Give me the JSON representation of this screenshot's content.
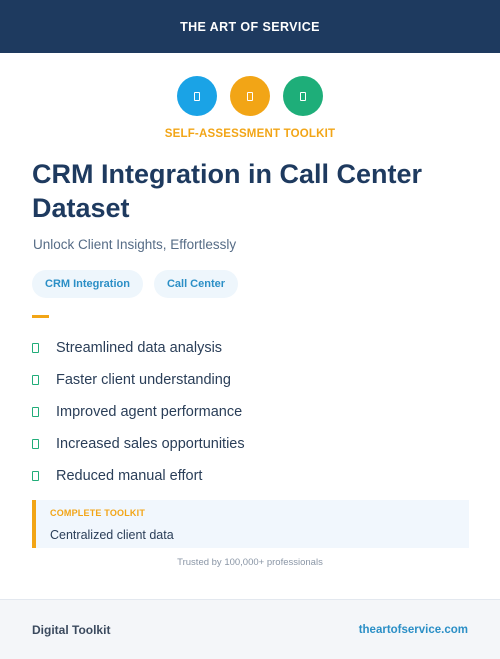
{
  "header": {
    "brand": "THE ART OF SERVICE"
  },
  "icons": [
    {
      "name": "doc-icon",
      "color": "#1aa3e6"
    },
    {
      "name": "doc-icon",
      "color": "#f2a516"
    },
    {
      "name": "doc-icon",
      "color": "#1eae79"
    }
  ],
  "kicker": "SELF-ASSESSMENT TOOLKIT",
  "title": "CRM Integration in Call Center Dataset",
  "subtitle": "Unlock Client Insights, Effortlessly",
  "tags": [
    "CRM Integration",
    "Call Center"
  ],
  "benefits": [
    "Streamlined data analysis",
    "Faster client understanding",
    "Improved agent performance",
    "Increased sales opportunities",
    "Reduced manual effort"
  ],
  "callout": {
    "label": "COMPLETE TOOLKIT",
    "text": "Centralized client data"
  },
  "trust": "Trusted by 100,000+ professionals",
  "footer": {
    "left": "Digital Toolkit",
    "right": "theartofservice.com"
  },
  "colors": {
    "navy": "#1e3a5f",
    "orange": "#f2a516",
    "blue": "#1aa3e6",
    "green": "#1eae79"
  }
}
